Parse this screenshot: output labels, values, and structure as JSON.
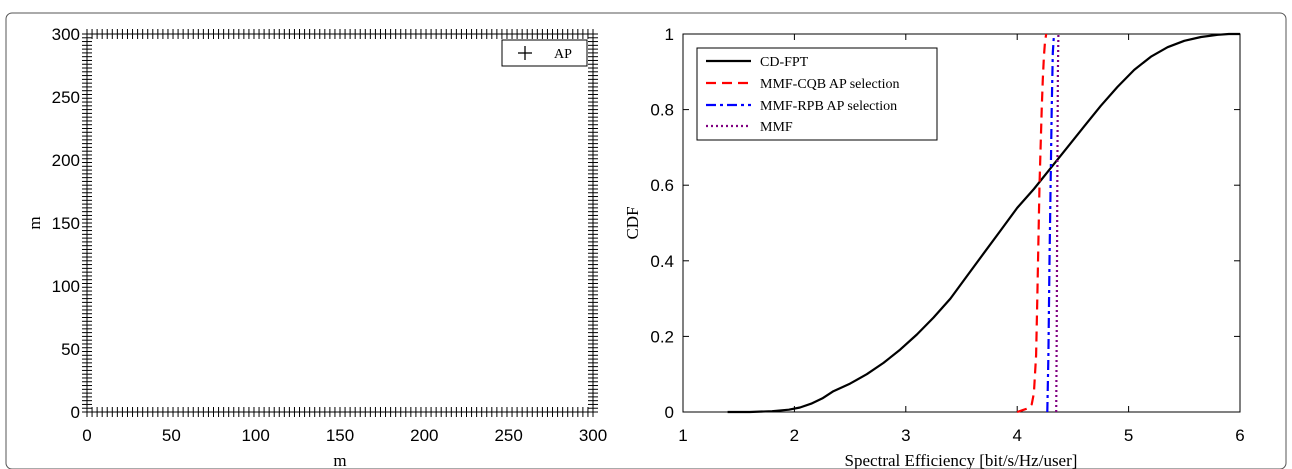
{
  "chart_data": [
    {
      "type": "scatter",
      "title": "",
      "xlabel": "m",
      "ylabel": "m",
      "xlim": [
        0,
        300
      ],
      "ylim": [
        0,
        300
      ],
      "x_ticks": [
        0,
        50,
        100,
        150,
        200,
        250,
        300
      ],
      "y_ticks": [
        0,
        50,
        100,
        150,
        200,
        250,
        300
      ],
      "grid": false,
      "legend_position": "top-right",
      "series": [
        {
          "name": "AP",
          "marker": "+",
          "color": "#000000",
          "layout": "perimeter",
          "spacing_m": 3,
          "description_values": "APs placed along the square boundary every ~3 m"
        }
      ]
    },
    {
      "type": "line",
      "title": "",
      "xlabel": "Spectral Efficiency [bit/s/Hz/user]",
      "ylabel": "CDF",
      "xlim": [
        1,
        6
      ],
      "ylim": [
        0,
        1
      ],
      "x_ticks": [
        1,
        2,
        3,
        4,
        5,
        6
      ],
      "y_ticks": [
        "0",
        "0.2",
        "0.4",
        "0.6",
        "0.8",
        "1"
      ],
      "grid": false,
      "legend_position": "top-left",
      "series": [
        {
          "name": "CD-FPT",
          "color": "#000000",
          "dash": "solid",
          "x": [
            1.4,
            1.6,
            1.8,
            1.95,
            2.05,
            2.15,
            2.25,
            2.35,
            2.5,
            2.65,
            2.8,
            2.95,
            3.1,
            3.25,
            3.4,
            3.55,
            3.7,
            3.85,
            4.0,
            4.15,
            4.3,
            4.45,
            4.6,
            4.75,
            4.9,
            5.05,
            5.2,
            5.35,
            5.5,
            5.65,
            5.8,
            5.9,
            6.0
          ],
          "y": [
            0.0,
            0.0,
            0.002,
            0.006,
            0.012,
            0.022,
            0.036,
            0.055,
            0.075,
            0.1,
            0.13,
            0.165,
            0.205,
            0.25,
            0.3,
            0.36,
            0.42,
            0.48,
            0.54,
            0.59,
            0.645,
            0.7,
            0.755,
            0.81,
            0.86,
            0.905,
            0.94,
            0.965,
            0.982,
            0.992,
            0.998,
            1.0,
            1.0
          ]
        },
        {
          "name": "MMF-CQB AP selection",
          "color": "#ff0000",
          "dash": "dashed",
          "x": [
            4.0,
            4.05,
            4.1,
            4.13,
            4.15,
            4.17,
            4.18,
            4.19,
            4.2,
            4.21,
            4.22,
            4.23,
            4.24,
            4.25,
            4.26
          ],
          "y": [
            0.0,
            0.005,
            0.01,
            0.02,
            0.05,
            0.15,
            0.3,
            0.45,
            0.6,
            0.7,
            0.8,
            0.88,
            0.94,
            0.98,
            1.0
          ]
        },
        {
          "name": "MMF-RPB AP selection",
          "color": "#0000ff",
          "dash": "dashdot",
          "x": [
            4.27,
            4.28,
            4.29,
            4.3,
            4.31,
            4.32,
            4.33
          ],
          "y": [
            0.0,
            0.15,
            0.4,
            0.6,
            0.8,
            0.95,
            1.0
          ]
        },
        {
          "name": "MMF",
          "color": "#800080",
          "dash": "dotted",
          "x": [
            4.35,
            4.355,
            4.36,
            4.365,
            4.37
          ],
          "y": [
            0.0,
            0.2,
            0.6,
            0.9,
            1.0
          ]
        }
      ]
    }
  ]
}
